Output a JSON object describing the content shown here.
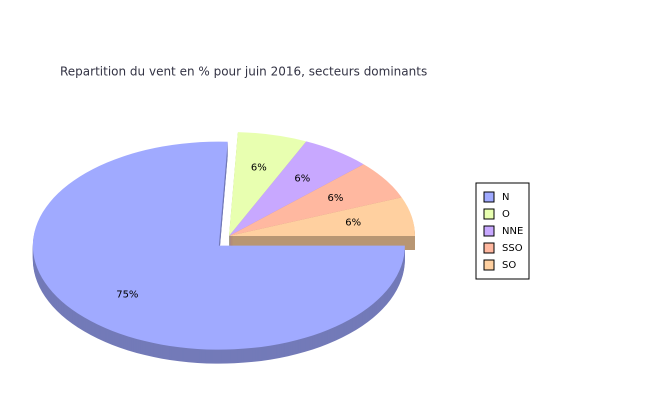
{
  "chart_data": {
    "type": "pie",
    "title": "Repartition du vent en % pour juin 2016, secteurs dominants",
    "categories": [
      "N",
      "O",
      "NNE",
      "SSO",
      "SO"
    ],
    "values": [
      75,
      6,
      6,
      6,
      6
    ],
    "value_labels": [
      "75%",
      "6%",
      "6%",
      "6%",
      "6%"
    ],
    "colors": [
      "#a0aaff",
      "#e8ffb0",
      "#c8a8ff",
      "#ffb8a0",
      "#ffd0a0"
    ],
    "legend": "right"
  }
}
